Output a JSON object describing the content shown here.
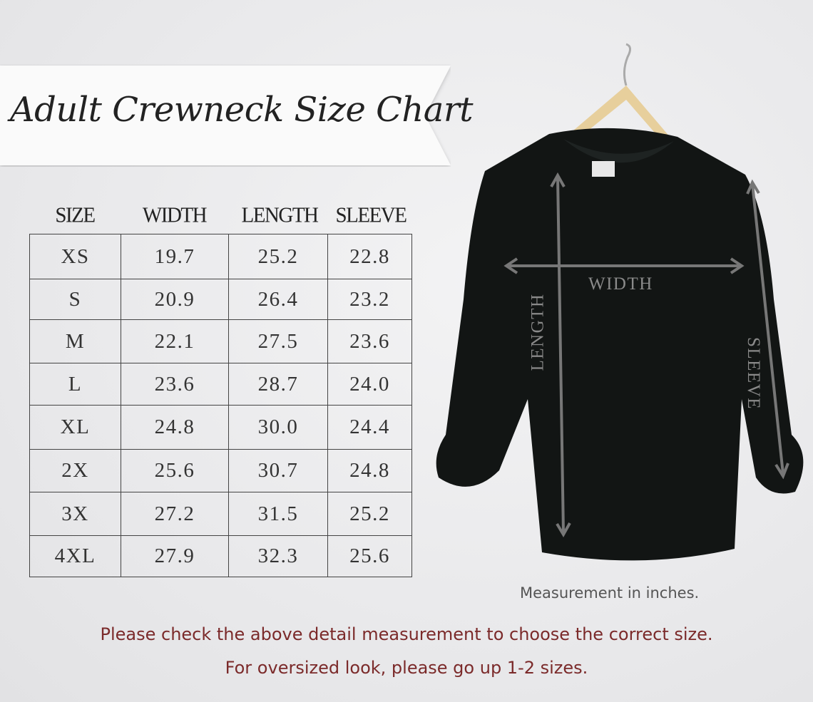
{
  "title": "Adult Crewneck Size Chart",
  "table": {
    "headers": [
      "SIZE",
      "WIDTH",
      "LENGTH",
      "SLEEVE"
    ],
    "rows": [
      [
        "XS",
        "19.7",
        "25.2",
        "22.8"
      ],
      [
        "S",
        "20.9",
        "26.4",
        "23.2"
      ],
      [
        "M",
        "22.1",
        "27.5",
        "23.6"
      ],
      [
        "L",
        "23.6",
        "28.7",
        "24.0"
      ],
      [
        "XL",
        "24.8",
        "30.0",
        "24.4"
      ],
      [
        "2X",
        "25.6",
        "30.7",
        "24.8"
      ],
      [
        "3X",
        "27.2",
        "31.5",
        "25.2"
      ],
      [
        "4XL",
        "27.9",
        "32.3",
        "25.6"
      ]
    ]
  },
  "diagram": {
    "width_label": "WIDTH",
    "length_label": "LENGTH",
    "sleeve_label": "SLEEVE"
  },
  "note": "Measurement in inches.",
  "footer": {
    "line1": "Please check the above detail measurement to choose the correct size.",
    "line2": "For oversized look,  please go up 1-2 sizes."
  },
  "colors": {
    "footer_text": "#7b2a2a",
    "shirt": "#121514",
    "background": "#ececee"
  }
}
